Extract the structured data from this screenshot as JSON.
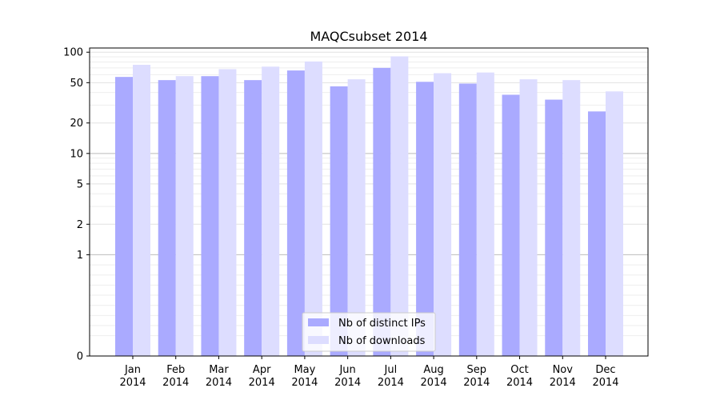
{
  "chart_data": {
    "type": "bar",
    "title": "MAQCsubset 2014",
    "xlabel": "",
    "ylabel": "",
    "yscale": "symlog",
    "ylim": [
      0,
      110
    ],
    "yticks": [
      0,
      1,
      2,
      5,
      10,
      20,
      50,
      100
    ],
    "ytick_labels": [
      "0",
      "1",
      "2",
      "5",
      "10",
      "20",
      "50",
      "100"
    ],
    "categories": [
      "Jan\n2014",
      "Feb\n2014",
      "Mar\n2014",
      "Apr\n2014",
      "May\n2014",
      "Jun\n2014",
      "Jul\n2014",
      "Aug\n2014",
      "Sep\n2014",
      "Oct\n2014",
      "Nov\n2014",
      "Dec\n2014"
    ],
    "category_lines": [
      [
        "Jan",
        "2014"
      ],
      [
        "Feb",
        "2014"
      ],
      [
        "Mar",
        "2014"
      ],
      [
        "Apr",
        "2014"
      ],
      [
        "May",
        "2014"
      ],
      [
        "Jun",
        "2014"
      ],
      [
        "Jul",
        "2014"
      ],
      [
        "Aug",
        "2014"
      ],
      [
        "Sep",
        "2014"
      ],
      [
        "Oct",
        "2014"
      ],
      [
        "Nov",
        "2014"
      ],
      [
        "Dec",
        "2014"
      ]
    ],
    "series": [
      {
        "name": "Nb of distinct IPs",
        "color": "#aaaaff",
        "values": [
          57,
          53,
          58,
          53,
          66,
          46,
          70,
          51,
          49,
          38,
          34,
          26
        ]
      },
      {
        "name": "Nb of downloads",
        "color": "#ddddff",
        "values": [
          75,
          58,
          68,
          72,
          81,
          54,
          91,
          62,
          63,
          54,
          53,
          41
        ]
      }
    ],
    "grid": true,
    "legend_position": "bottom-center"
  }
}
